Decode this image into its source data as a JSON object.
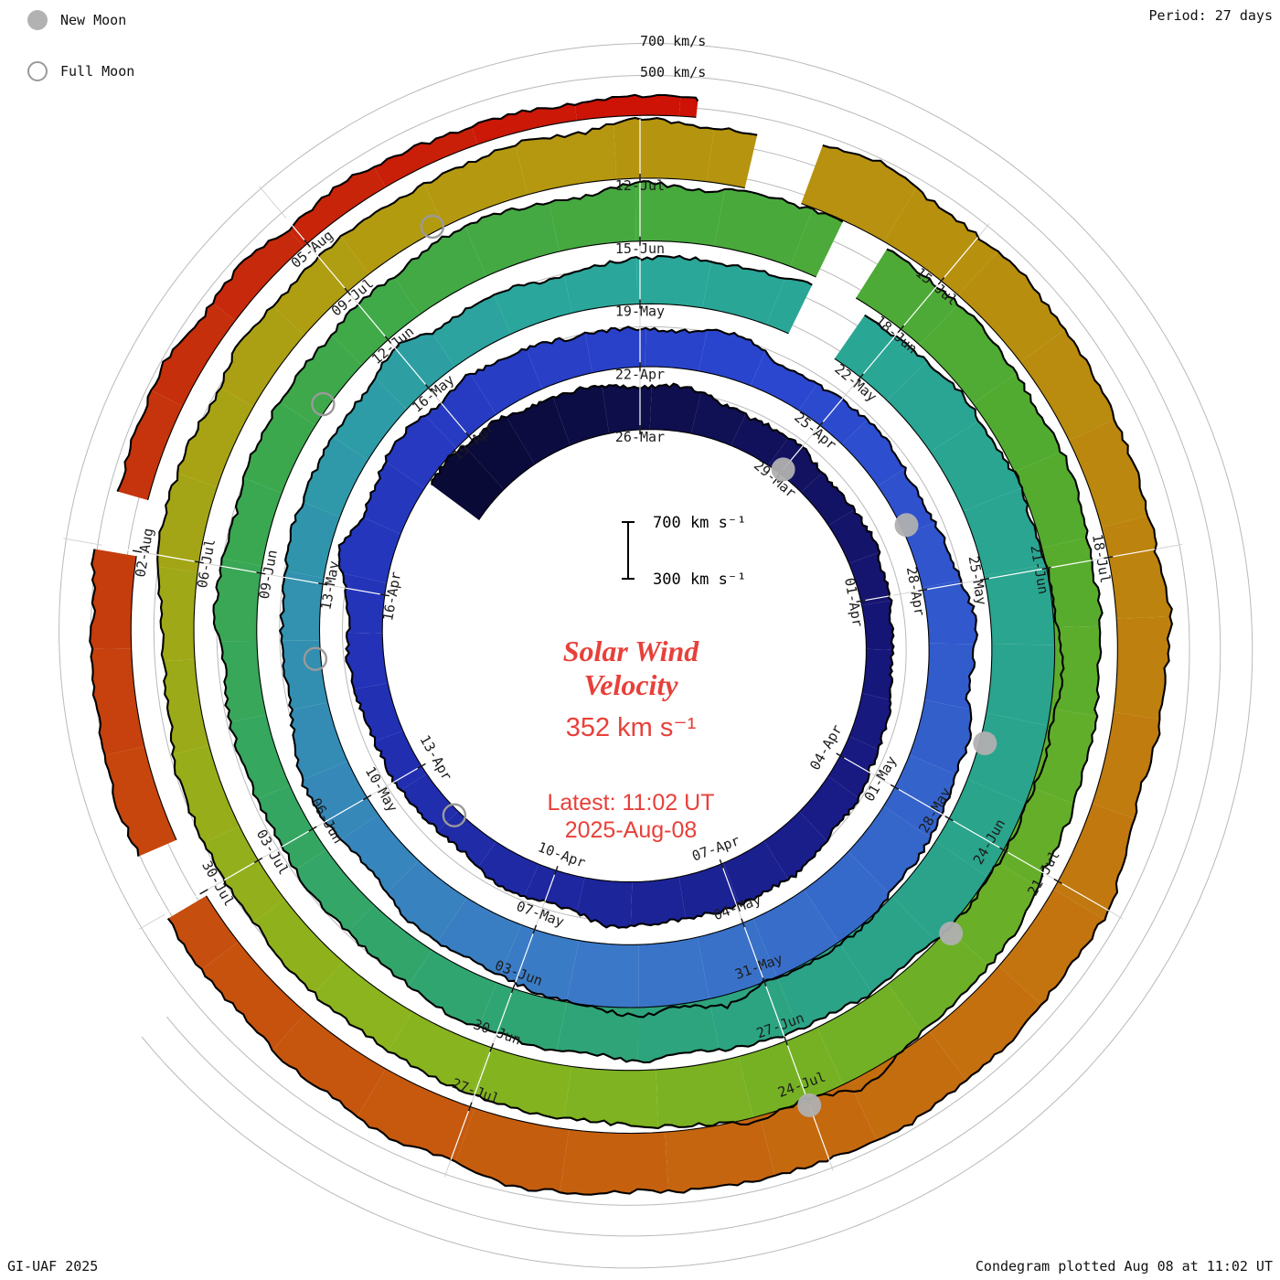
{
  "header": {
    "period_label": "Period: 27 days"
  },
  "legend": {
    "new_moon": "New Moon",
    "full_moon": "Full Moon"
  },
  "footer": {
    "left": "GI-UAF 2025",
    "right": "Condegram plotted Aug 08 at 11:02 UT"
  },
  "ring_labels": {
    "outer": "700 km/s",
    "inner": "500 km/s"
  },
  "scale_bar": {
    "top": "700 km s⁻¹",
    "bottom": "300 km s⁻¹"
  },
  "center": {
    "title_line1": "Solar Wind",
    "title_line2": "Velocity",
    "current": "352 km s⁻¹",
    "latest": "Latest: 11:02 UT",
    "date": "2025-Aug-08",
    "text_color": "#e8403a"
  },
  "chart_data": {
    "type": "line",
    "layout": "polar-spiral-condegram",
    "title": "Solar Wind Velocity",
    "units": "km/s",
    "period_days": 27,
    "tick_interval_days": 3,
    "start_date": "2025-03-22",
    "top_reference_date": "2025-03-26",
    "end": "2025-08-08T11:02:00Z",
    "latest_value_kms": 352,
    "radial_gridlines_kms": [
      500,
      700
    ],
    "value_axis": {
      "baseline_kms": 250,
      "scale_ref_low": 300,
      "scale_ref_high": 700
    },
    "tick_labels": [
      "26-Mar",
      "29-Mar",
      "01-Apr",
      "04-Apr",
      "07-Apr",
      "10-Apr",
      "13-Apr",
      "16-Apr",
      "19-Apr",
      "22-Apr",
      "25-Apr",
      "28-Apr",
      "01-May",
      "04-May",
      "07-May",
      "10-May",
      "13-May",
      "16-May",
      "19-May",
      "22-May",
      "25-May",
      "28-May",
      "31-May",
      "03-Jun",
      "06-Jun",
      "09-Jun",
      "12-Jun",
      "15-Jun",
      "18-Jun",
      "21-Jun",
      "24-Jun",
      "27-Jun",
      "30-Jun",
      "03-Jul",
      "06-Jul",
      "09-Jul",
      "12-Jul",
      "15-Jul",
      "18-Jul",
      "21-Jul",
      "24-Jul",
      "27-Jul",
      "30-Jul",
      "02-Aug",
      "05-Aug"
    ],
    "control_points": [
      [
        "2025-03-22",
        640
      ],
      [
        "2025-03-25",
        560
      ],
      [
        "2025-03-28",
        470
      ],
      [
        "2025-03-31",
        410
      ],
      [
        "2025-04-03",
        440
      ],
      [
        "2025-04-06",
        520
      ],
      [
        "2025-04-09",
        490
      ],
      [
        "2025-04-12",
        420
      ],
      [
        "2025-04-15",
        470
      ],
      [
        "2025-04-18",
        550
      ],
      [
        "2025-04-21",
        510
      ],
      [
        "2025-04-24",
        450
      ],
      [
        "2025-04-27",
        460
      ],
      [
        "2025-04-30",
        540
      ],
      [
        "2025-05-03",
        660
      ],
      [
        "2025-05-06",
        650
      ],
      [
        "2025-05-09",
        540
      ],
      [
        "2025-05-12",
        470
      ],
      [
        "2025-05-15",
        520
      ],
      [
        "2025-05-18",
        490
      ],
      [
        "2025-05-21",
        570
      ],
      [
        "2025-05-24",
        630
      ],
      [
        "2025-05-27",
        660
      ],
      [
        "2025-05-30",
        630
      ],
      [
        "2025-06-02",
        550
      ],
      [
        "2025-06-05",
        490
      ],
      [
        "2025-06-08",
        460
      ],
      [
        "2025-06-11",
        520
      ],
      [
        "2025-06-14",
        570
      ],
      [
        "2025-06-17",
        620
      ],
      [
        "2025-06-20",
        570
      ],
      [
        "2025-06-23",
        510
      ],
      [
        "2025-06-26",
        640
      ],
      [
        "2025-06-29",
        590
      ],
      [
        "2025-07-02",
        510
      ],
      [
        "2025-07-05",
        455
      ],
      [
        "2025-07-08",
        510
      ],
      [
        "2025-07-11",
        565
      ],
      [
        "2025-07-14",
        635
      ],
      [
        "2025-07-17",
        590
      ],
      [
        "2025-07-20",
        525
      ],
      [
        "2025-07-23",
        655
      ],
      [
        "2025-07-26",
        625
      ],
      [
        "2025-07-29",
        545
      ],
      [
        "2025-08-01",
        485
      ],
      [
        "2025-08-04",
        430
      ],
      [
        "2025-08-08",
        352
      ]
    ],
    "gaps": [
      {
        "start": "2025-05-21",
        "days": 0.6
      },
      {
        "start": "2025-06-17",
        "days": 0.4
      },
      {
        "start": "2025-07-13",
        "days": 0.5
      },
      {
        "start": "2025-07-30",
        "days": 0.45
      },
      {
        "start": "2025-08-02",
        "days": 0.4
      }
    ],
    "moons": {
      "new": [
        "2025-03-29",
        "2025-04-27",
        "2025-05-27",
        "2025-06-25",
        "2025-07-24"
      ],
      "full": [
        "2025-04-12",
        "2025-05-12",
        "2025-06-11",
        "2025-07-10"
      ]
    },
    "colormap": [
      [
        "2025-03-22",
        "#0a0a33"
      ],
      [
        "2025-04-02",
        "#161678"
      ],
      [
        "2025-04-14",
        "#2230b4"
      ],
      [
        "2025-04-24",
        "#2b46cf"
      ],
      [
        "2025-05-06",
        "#3b78c8"
      ],
      [
        "2025-05-18",
        "#2aa79b"
      ],
      [
        "2025-05-30",
        "#2aa388"
      ],
      [
        "2025-06-10",
        "#3ba84e"
      ],
      [
        "2025-06-20",
        "#52ab2f"
      ],
      [
        "2025-07-01",
        "#8ab51e"
      ],
      [
        "2025-07-10",
        "#b49a10"
      ],
      [
        "2025-07-16",
        "#b88d0e"
      ],
      [
        "2025-07-22",
        "#c4720f"
      ],
      [
        "2025-07-29",
        "#c6520e"
      ],
      [
        "2025-08-04",
        "#c52d0c"
      ],
      [
        "2025-08-08",
        "#cd1205"
      ]
    ]
  }
}
